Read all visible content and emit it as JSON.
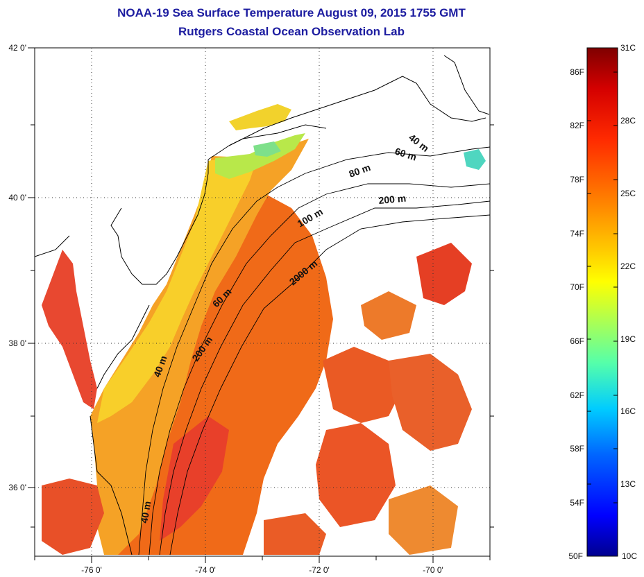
{
  "title": "NOAA-19 Sea Surface Temperature August 09, 2015 1755 GMT",
  "subtitle": "Rutgers Coastal Ocean Observation Lab",
  "map": {
    "longitude_labels": [
      "-76 0'",
      "-74 0'",
      "-72 0'",
      "-70 0'"
    ],
    "latitude_labels": [
      "42 0'",
      "40 0'",
      "38 0'",
      "36 0'"
    ],
    "longitude_values": [
      -76,
      -74,
      -72,
      -70
    ],
    "latitude_values": [
      42,
      40,
      38,
      36
    ],
    "lon_range": [
      -77,
      -69
    ],
    "lat_range": [
      35,
      42
    ],
    "gridlines": "dotted",
    "contour_labels": [
      "40 m",
      "60 m",
      "80 m",
      "200 m",
      "100 m",
      "2000 m",
      "60 m",
      "200 m",
      "40 m",
      "40 m"
    ]
  },
  "colorbar": {
    "celsius_labels": [
      "31C",
      "28C",
      "25C",
      "22C",
      "19C",
      "16C",
      "13C",
      "10C"
    ],
    "fahrenheit_labels": [
      "86F",
      "82F",
      "78F",
      "74F",
      "70F",
      "66F",
      "62F",
      "58F",
      "54F",
      "50F"
    ],
    "range_c": [
      10,
      31
    ],
    "colormap": [
      "#7f0000",
      "#d40000",
      "#ff2a00",
      "#ff8000",
      "#ffcc00",
      "#ffff00",
      "#aaff55",
      "#55ffaa",
      "#00ccff",
      "#0066ff",
      "#0000ff",
      "#00008f"
    ]
  },
  "colors": {
    "title": "#1c1ca0",
    "land": "#ffffff",
    "coast": "#000000"
  }
}
